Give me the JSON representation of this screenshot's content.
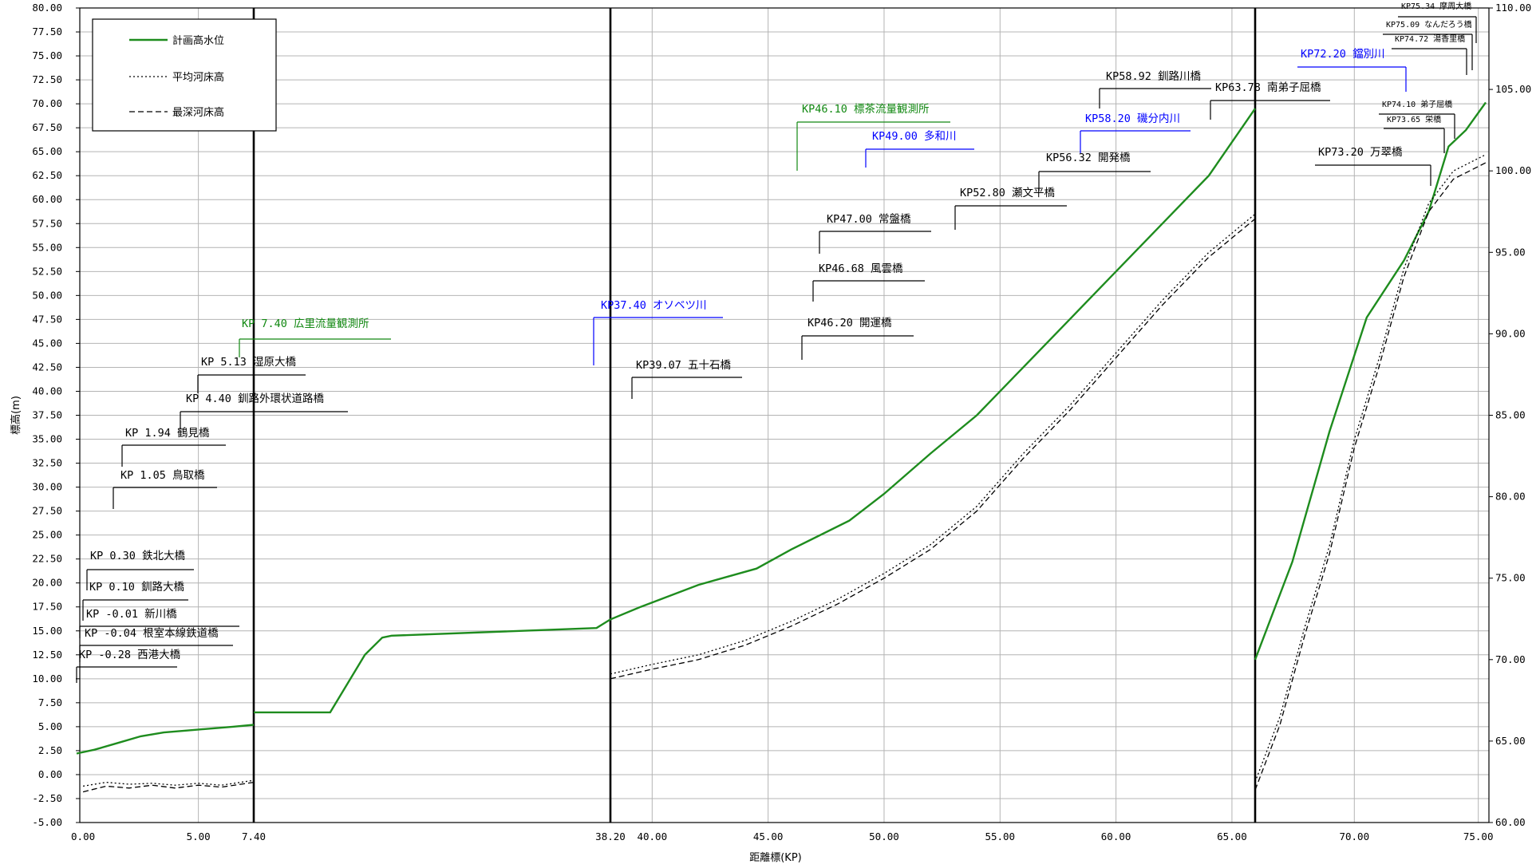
{
  "chart_data": {
    "type": "line",
    "xlabel": "距離標(KP)",
    "ylabel": "標高(m)",
    "ylim_left": [
      -5,
      80
    ],
    "ylim_right": [
      60,
      110
    ],
    "grid": true,
    "legend_placement": "top-left",
    "colors": {
      "plan": "#1e8c1e",
      "bed": "#000000",
      "blue": "#0000ff",
      "green_label": "#118811"
    },
    "x_ticks": [
      {
        "label": "0.00"
      },
      {
        "label": "5.00"
      },
      {
        "label": "7.40"
      },
      {
        "label": "38.20"
      },
      {
        "label": "40.00"
      },
      {
        "label": "45.00"
      },
      {
        "label": "50.00"
      },
      {
        "label": "55.00"
      },
      {
        "label": "60.00"
      },
      {
        "label": "65.00"
      },
      {
        "label": "70.00"
      },
      {
        "label": "75.00"
      }
    ],
    "y_ticks_left": [
      "80.00",
      "77.50",
      "75.00",
      "72.50",
      "70.00",
      "67.50",
      "65.00",
      "62.50",
      "60.00",
      "57.50",
      "55.00",
      "52.50",
      "50.00",
      "47.50",
      "45.00",
      "42.50",
      "40.00",
      "37.50",
      "35.00",
      "32.50",
      "30.00",
      "27.50",
      "25.00",
      "22.50",
      "20.00",
      "17.50",
      "15.00",
      "12.50",
      "10.00",
      "7.50",
      "5.00",
      "2.50",
      "0.00",
      "-2.50",
      "-5.00"
    ],
    "y_ticks_right": [
      "110.00",
      "105.00",
      "100.00",
      "95.00",
      "90.00",
      "85.00",
      "80.00",
      "75.00",
      "70.00",
      "65.00",
      "60.00"
    ],
    "series": [
      {
        "name": "計画高水位",
        "style": "solid",
        "color": "#1e8c1e",
        "segments": [
          {
            "axis": "left",
            "kp": [
              -0.28,
              0.5,
              1.5,
              2.5,
              3.5,
              4.5,
              5.5,
              6.5,
              7.4
            ],
            "elev": [
              2.2,
              2.6,
              3.3,
              4.0,
              4.4,
              4.6,
              4.8,
              5.0,
              5.2
            ]
          },
          {
            "axis": "left",
            "kp": [
              7.4,
              14.0,
              17.0,
              18.5,
              19.3,
              37.0,
              38.2,
              39.5,
              42.0,
              44.5,
              46.0,
              48.5,
              50.0,
              52.0,
              54.0,
              56.0,
              58.0,
              60.0,
              62.0,
              64.0,
              66.0
            ],
            "elev": [
              6.5,
              6.5,
              12.5,
              14.3,
              14.5,
              15.3,
              16.2,
              17.5,
              19.8,
              21.5,
              23.5,
              26.5,
              29.3,
              33.5,
              37.5,
              42.5,
              47.5,
              52.5,
              57.5,
              62.5,
              69.5
            ]
          },
          {
            "axis": "right",
            "kp": [
              66.0,
              67.5,
              69.0,
              70.5,
              72.0,
              73.0,
              73.8,
              74.5,
              75.3
            ],
            "elev": [
              70.0,
              76.0,
              84.0,
              91.0,
              94.5,
              97.5,
              101.5,
              102.5,
              104.2
            ]
          }
        ]
      },
      {
        "name": "平均河床高",
        "style": "dotted",
        "color": "#000000",
        "segments": [
          {
            "axis": "left",
            "kp": [
              0.0,
              1.0,
              2.0,
              3.0,
              4.0,
              5.0,
              6.0,
              7.4
            ],
            "elev": [
              -1.2,
              -0.8,
              -1.0,
              -0.9,
              -1.1,
              -0.9,
              -1.1,
              -0.6
            ]
          },
          {
            "axis": "left",
            "kp": [
              38.2,
              40.0,
              42.0,
              44.0,
              46.0,
              48.0,
              50.0,
              52.0,
              54.0,
              56.0,
              58.0,
              60.0,
              62.0,
              64.0,
              66.0
            ],
            "elev": [
              10.5,
              11.5,
              12.5,
              14.0,
              16.0,
              18.3,
              21.0,
              24.0,
              28.0,
              33.5,
              38.5,
              44.0,
              49.5,
              54.5,
              58.5
            ]
          },
          {
            "axis": "right",
            "kp": [
              66.0,
              67.0,
              68.0,
              69.0,
              70.0,
              71.0,
              72.0,
              73.0,
              74.0,
              75.3
            ],
            "elev": [
              62.5,
              66.5,
              72.0,
              77.0,
              83.5,
              88.5,
              94.0,
              98.0,
              100.0,
              101.0
            ]
          }
        ]
      },
      {
        "name": "最深河床高",
        "style": "dashed",
        "color": "#000000",
        "segments": [
          {
            "axis": "left",
            "kp": [
              0.0,
              1.0,
              2.0,
              3.0,
              4.0,
              5.0,
              6.0,
              7.4
            ],
            "elev": [
              -1.8,
              -1.2,
              -1.4,
              -1.1,
              -1.4,
              -1.1,
              -1.3,
              -0.8
            ]
          },
          {
            "axis": "left",
            "kp": [
              38.2,
              40.0,
              42.0,
              44.0,
              46.0,
              48.0,
              50.0,
              52.0,
              54.0,
              56.0,
              58.0,
              60.0,
              62.0,
              64.0,
              66.0
            ],
            "elev": [
              10.0,
              11.0,
              12.0,
              13.5,
              15.5,
              17.8,
              20.5,
              23.5,
              27.5,
              33.0,
              38.0,
              43.5,
              49.0,
              54.0,
              58.0
            ]
          },
          {
            "axis": "right",
            "kp": [
              66.0,
              67.0,
              68.0,
              69.0,
              70.0,
              71.0,
              72.0,
              73.0,
              74.0,
              75.3
            ],
            "elev": [
              62.0,
              66.0,
              71.5,
              76.5,
              83.0,
              88.0,
              93.5,
              97.5,
              99.5,
              100.5
            ]
          }
        ]
      }
    ],
    "annotations": [
      {
        "text": "KP 7.40 広里流量観測所",
        "color": "green"
      },
      {
        "text": "KP 5.13 湿原大橋",
        "color": "black"
      },
      {
        "text": "KP 4.40 釧路外環状道路橋",
        "color": "black"
      },
      {
        "text": "KP 1.94 鶴見橋",
        "color": "black"
      },
      {
        "text": "KP 1.05 鳥取橋",
        "color": "black"
      },
      {
        "text": "KP 0.30 鉄北大橋",
        "color": "black"
      },
      {
        "text": "KP 0.10 釧路大橋",
        "color": "black"
      },
      {
        "text": "KP -0.01 新川橋",
        "color": "black"
      },
      {
        "text": "KP -0.04 根室本線鉄道橋",
        "color": "black"
      },
      {
        "text": "KP -0.28 西港大橋",
        "color": "black"
      },
      {
        "text": "KP37.40 オソベツ川",
        "color": "blue"
      },
      {
        "text": "KP39.07 五十石橋",
        "color": "black"
      },
      {
        "text": "KP46.10 標茶流量観測所",
        "color": "green"
      },
      {
        "text": "KP49.00 多和川",
        "color": "blue"
      },
      {
        "text": "KP47.00 常盤橋",
        "color": "black"
      },
      {
        "text": "KP46.68 風雲橋",
        "color": "black"
      },
      {
        "text": "KP46.20 開運橋",
        "color": "black"
      },
      {
        "text": "KP52.80 瀬文平橋",
        "color": "black"
      },
      {
        "text": "KP56.32 開発橋",
        "color": "black"
      },
      {
        "text": "KP58.20 磯分内川",
        "color": "blue"
      },
      {
        "text": "KP58.92 釧路川橋",
        "color": "black"
      },
      {
        "text": "KP63.78 南弟子屈橋",
        "color": "black"
      },
      {
        "text": "KP72.20 鐺別川",
        "color": "blue"
      },
      {
        "text": "KP73.20 万翠橋",
        "color": "black"
      },
      {
        "text": "KP75.34 摩周大橋",
        "color": "black"
      },
      {
        "text": "KP75.09 なんだろう橋",
        "color": "black"
      },
      {
        "text": "KP74.72 湯香里橋",
        "color": "black"
      },
      {
        "text": "KP74.10 弟子屈橋",
        "color": "black"
      },
      {
        "text": "KP73.65 栄橋",
        "color": "black"
      }
    ]
  }
}
